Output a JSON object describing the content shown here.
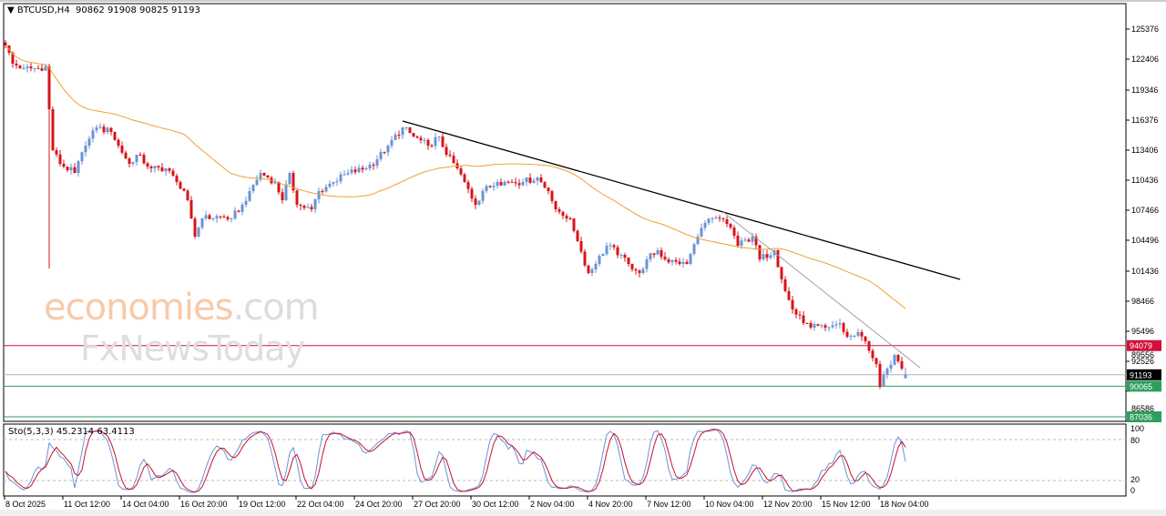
{
  "header": {
    "symbol": "BTCUSD,H4",
    "ohlc": "90862 91908 90825 91193",
    "menu_icon": "triangle-down-icon"
  },
  "watermark": {
    "line1": "economies",
    "line1_suffix": ".com",
    "line2": "FxNewsToday"
  },
  "stochastic": {
    "label": "Sto(5,3,3) 45.2314 63.4113",
    "levels": [
      20,
      80
    ],
    "axis_labels": [
      "100",
      "80",
      "20",
      "0"
    ]
  },
  "colors": {
    "bull": "#6b93d6",
    "bear": "#d7141a",
    "ma": "#f0a030",
    "resistance": "#d0103a",
    "support": "#2e9e5e",
    "current": "#000000",
    "trendline": "#000000",
    "trendline2": "#a0a0a0",
    "stoch_main": "#6b93d6",
    "stoch_signal": "#c8102e"
  },
  "chart_data": {
    "type": "candlestick",
    "symbol": "BTCUSD",
    "timeframe": "H4",
    "price_path": [
      [
        0,
        123756
      ],
      [
        2,
        121956
      ],
      [
        5,
        121500
      ],
      [
        9,
        121500
      ],
      [
        11,
        121700
      ],
      [
        12,
        117456
      ],
      [
        13,
        113406
      ],
      [
        15,
        112056
      ],
      [
        19,
        111156
      ],
      [
        22,
        113856
      ],
      [
        25,
        115656
      ],
      [
        29,
        115206
      ],
      [
        31,
        113856
      ],
      [
        34,
        112056
      ],
      [
        36,
        112956
      ],
      [
        40,
        111606
      ],
      [
        44,
        111606
      ],
      [
        47,
        110256
      ],
      [
        50,
        108456
      ],
      [
        52,
        104856
      ],
      [
        54,
        106656
      ],
      [
        59,
        106836
      ],
      [
        62,
        106656
      ],
      [
        65,
        108006
      ],
      [
        67,
        109356
      ],
      [
        70,
        111156
      ],
      [
        74,
        110256
      ],
      [
        76,
        108456
      ],
      [
        78,
        111156
      ],
      [
        80,
        108006
      ],
      [
        84,
        107556
      ],
      [
        86,
        109356
      ],
      [
        90,
        110256
      ],
      [
        94,
        111156
      ],
      [
        99,
        111606
      ],
      [
        102,
        112506
      ],
      [
        105,
        113856
      ],
      [
        109,
        115656
      ],
      [
        112,
        114756
      ],
      [
        116,
        113856
      ],
      [
        119,
        114756
      ],
      [
        121,
        112956
      ],
      [
        124,
        111606
      ],
      [
        126,
        110256
      ],
      [
        129,
        108006
      ],
      [
        131,
        109356
      ],
      [
        135,
        110256
      ],
      [
        139,
        110256
      ],
      [
        142,
        110256
      ],
      [
        146,
        110706
      ],
      [
        149,
        109356
      ],
      [
        151,
        107556
      ],
      [
        155,
        106656
      ],
      [
        157,
        104406
      ],
      [
        160,
        101256
      ],
      [
        162,
        102156
      ],
      [
        165,
        103956
      ],
      [
        169,
        103056
      ],
      [
        171,
        102156
      ],
      [
        174,
        101256
      ],
      [
        176,
        102606
      ],
      [
        179,
        103506
      ],
      [
        181,
        102606
      ],
      [
        185,
        102156
      ],
      [
        187,
        102156
      ],
      [
        190,
        104856
      ],
      [
        192,
        106206
      ],
      [
        196,
        106656
      ],
      [
        199,
        105756
      ],
      [
        201,
        103956
      ],
      [
        205,
        104856
      ],
      [
        207,
        102606
      ],
      [
        211,
        103506
      ],
      [
        214,
        99456
      ],
      [
        216,
        97656
      ],
      [
        219,
        96306
      ],
      [
        221,
        95856
      ],
      [
        225,
        95856
      ],
      [
        229,
        96306
      ],
      [
        231,
        94956
      ],
      [
        234,
        95406
      ],
      [
        236,
        94506
      ],
      [
        239,
        92256
      ],
      [
        240,
        90006
      ],
      [
        242,
        91806
      ],
      [
        244,
        93156
      ],
      [
        246,
        91806
      ],
      [
        247,
        91193
      ]
    ],
    "last": {
      "open": 90862,
      "high": 91908,
      "low": 90825,
      "close": 91193
    },
    "moving_average": "orange line",
    "horizontal_lines": [
      {
        "price": 94079,
        "color": "#d0103a",
        "label": "94079"
      },
      {
        "price": 91193,
        "color": "#000000",
        "label": "91193"
      },
      {
        "price": 90065,
        "color": "#2e9e5e",
        "label": "90065"
      },
      {
        "price": 87036,
        "color": "#2e9e5e",
        "label": "87036"
      }
    ],
    "trendlines": [
      {
        "from": [
          109,
          116286
        ],
        "to": [
          262,
          100626
        ],
        "color": "#000000"
      },
      {
        "from": [
          197,
          107286
        ],
        "to": [
          251,
          91896
        ],
        "color": "#a0a0a0"
      }
    ],
    "y_ticks": [
      "125376",
      "122406",
      "119346",
      "116376",
      "113406",
      "110436",
      "107466",
      "104496",
      "101436",
      "98466",
      "95496",
      "92526",
      "89556",
      "86586"
    ],
    "y_tick_values": [
      125376,
      122406,
      119346,
      116376,
      113406,
      110436,
      107466,
      104496,
      101436,
      98466,
      95496,
      92526,
      89556,
      86586
    ],
    "x_ticks": [
      "8 Oct 2025",
      "11 Oct 12:00",
      "14 Oct 04:00",
      "16 Oct 20:00",
      "19 Oct 12:00",
      "22 Oct 04:00",
      "24 Oct 20:00",
      "27 Oct 20:00",
      "30 Oct 12:00",
      "2 Nov 04:00",
      "4 Nov 20:00",
      "7 Nov 12:00",
      "10 Nov 04:00",
      "12 Nov 20:00",
      "15 Nov 12:00",
      "18 Nov 04:00"
    ],
    "x_tick_bar_step": 16,
    "ylim": [
      86000,
      126500
    ],
    "grid": false
  }
}
